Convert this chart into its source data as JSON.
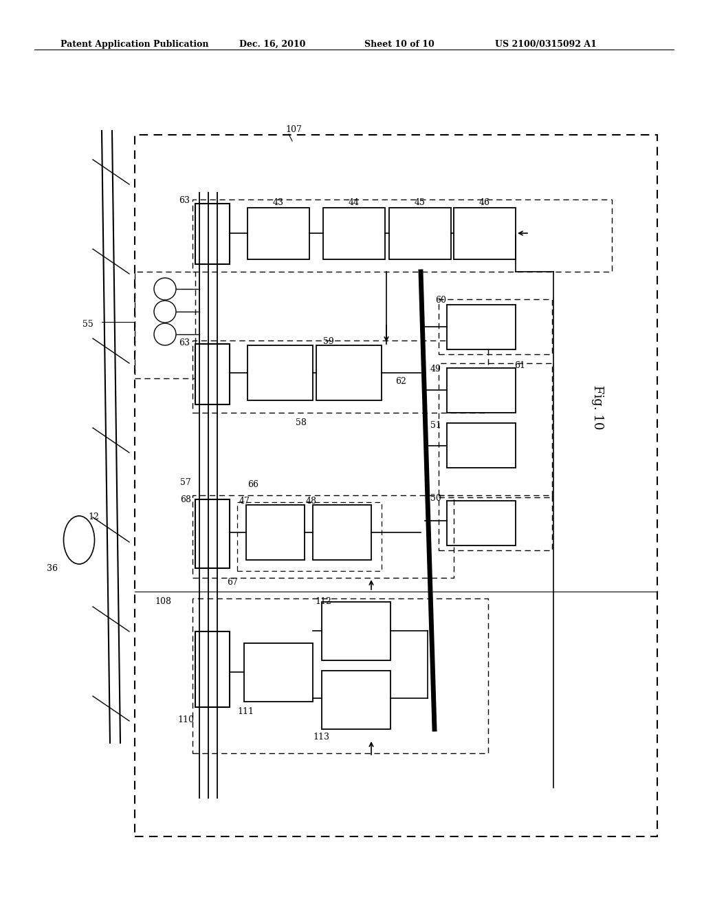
{
  "bg_color": "#ffffff",
  "header_text": "Patent Application Publication",
  "header_date": "Dec. 16, 2010",
  "header_sheet": "Sheet 10 of 10",
  "header_patent": "US 2100/0315092 A1",
  "fig_label": "Fig. 10"
}
